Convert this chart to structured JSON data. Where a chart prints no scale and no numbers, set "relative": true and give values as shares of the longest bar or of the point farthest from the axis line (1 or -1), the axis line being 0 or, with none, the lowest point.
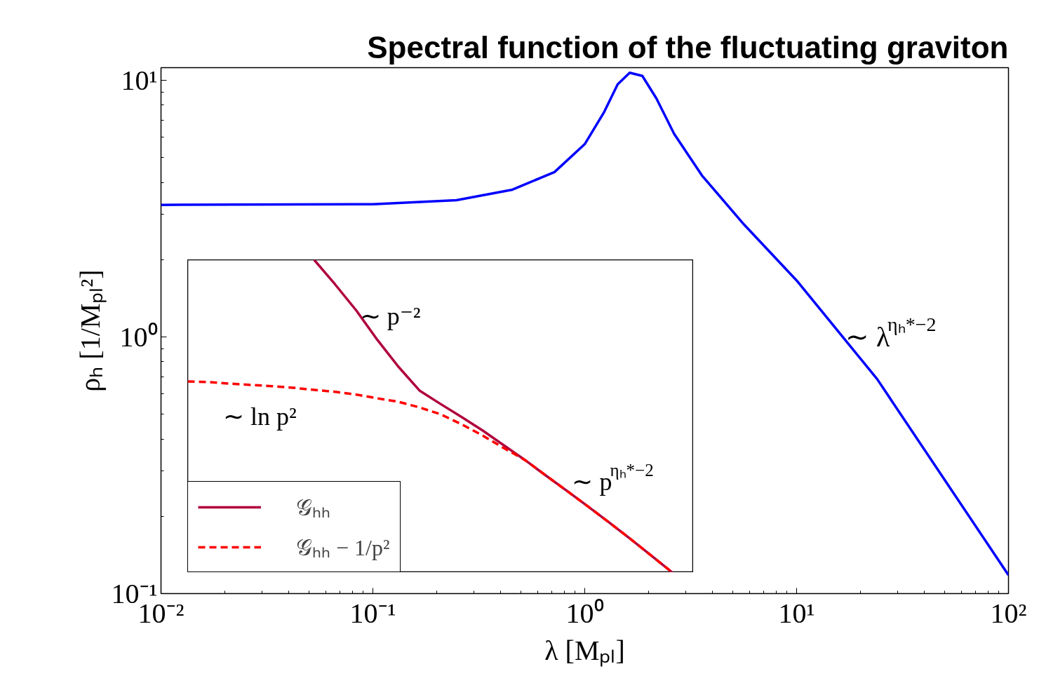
{
  "chart_data": [
    {
      "type": "line",
      "title": "Spectral function of the fluctuating graviton",
      "xlabel": "λ [Mₚₗ]",
      "ylabel": "ρₕ [1/Mₚₗ²]",
      "log": "xy",
      "xlim": [
        0.01,
        100
      ],
      "ylim": [
        0.1,
        11.2
      ],
      "xticks": [
        {
          "value": 0.01,
          "label": "10⁻²"
        },
        {
          "value": 0.1,
          "label": "10⁻¹"
        },
        {
          "value": 1,
          "label": "10⁰"
        },
        {
          "value": 10,
          "label": "10¹"
        },
        {
          "value": 100,
          "label": "10²"
        }
      ],
      "yticks": [
        {
          "value": 0.1,
          "label": "10⁻¹"
        },
        {
          "value": 1,
          "label": "10⁰"
        },
        {
          "value": 10,
          "label": "10¹"
        }
      ],
      "grid": false,
      "legend": false,
      "x": [
        0.01,
        0.1,
        0.248,
        0.456,
        0.72,
        1,
        1.23,
        1.43,
        1.63,
        1.87,
        2.18,
        2.64,
        3.58,
        5.65,
        10,
        24,
        100
      ],
      "series": [
        {
          "color": "#0000ff",
          "values": [
            3.27,
            3.29,
            3.41,
            3.75,
            4.39,
            5.64,
            7.48,
            9.64,
            10.7,
            10.4,
            8.49,
            6.19,
            4.25,
            2.74,
            1.66,
            0.685,
            0.118
          ]
        }
      ],
      "annotations": [
        {
          "text": "∼ λ$^{ηₕ*−2}$",
          "x": 17,
          "y": 1
        }
      ]
    },
    {
      "type": "line",
      "relative": true,
      "legend": "bottom left",
      "categories": [
        null,
        null,
        null,
        null,
        null,
        null,
        null,
        null,
        null,
        null,
        null,
        null,
        null,
        null,
        null,
        null,
        null,
        null,
        null,
        null,
        null,
        null,
        null,
        null,
        null
      ],
      "series": [
        {
          "name": "𝒢ₕₕ",
          "color": "#b0003c",
          "line_style": "solid",
          "values": [
            null,
            null,
            null,
            null,
            null,
            null,
            1.0,
            0.921,
            0.838,
            0.744,
            0.658,
            0.582,
            0.539,
            0.497,
            0.454,
            0.407,
            0.36,
            0.31,
            0.261,
            0.211,
            0.16,
            0.108,
            0.054,
            0,
            null
          ]
        },
        {
          "name": "𝒢ₕₕ − 1/p²",
          "color": "#ff0000",
          "line_style": "dashed",
          "values": [
            0.611,
            0.609,
            0.604,
            0.6,
            0.596,
            0.591,
            0.584,
            0.578,
            0.569,
            0.557,
            0.546,
            0.528,
            0.506,
            0.474,
            0.438,
            0.398,
            0.36,
            0.31,
            0.261,
            0.211,
            0.16,
            0.108,
            0.054,
            0,
            null
          ]
        }
      ],
      "annotations": [
        "∼ p⁻²",
        "∼ ln p²",
        "∼ p$^{ηₕ*−2}$"
      ]
    }
  ]
}
